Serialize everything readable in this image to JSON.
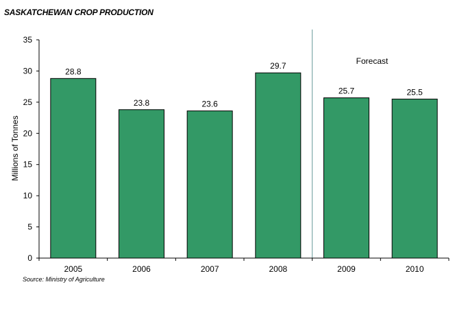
{
  "chart_data": {
    "type": "bar",
    "title": "SASKATCHEWAN CROP PRODUCTION",
    "ylabel": "Millions of Tonnes",
    "xlabel": "",
    "categories": [
      "2005",
      "2006",
      "2007",
      "2008",
      "2009",
      "2010"
    ],
    "values": [
      28.8,
      23.8,
      23.6,
      29.7,
      25.7,
      25.5
    ],
    "value_labels": [
      "28.8",
      "23.8",
      "23.6",
      "29.7",
      "25.7",
      "25.5"
    ],
    "ylim": [
      0,
      35
    ],
    "yticks": [
      "0",
      "5",
      "10",
      "15",
      "20",
      "25",
      "30",
      "35"
    ],
    "ytick_values": [
      0,
      5,
      10,
      15,
      20,
      25,
      30,
      35
    ],
    "grid": false,
    "legend": "none",
    "annotation": "Forecast",
    "forecast_from": "2009",
    "bar_color": "#339966",
    "bar_stroke": "#000000",
    "divider_color": "#669999",
    "source": "Source:  Ministry of Agriculture"
  }
}
